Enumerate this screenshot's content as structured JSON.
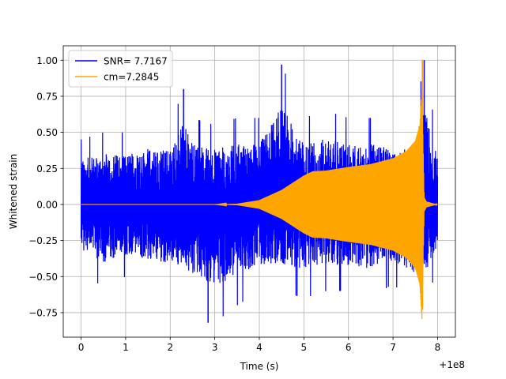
{
  "chart_data": {
    "type": "line",
    "title": "",
    "xlabel": "Time (s)",
    "ylabel": "Whitened strain",
    "x_offset_label": "+1e8",
    "xlim": [
      -0.4,
      8.4
    ],
    "ylim": [
      -0.92,
      1.1
    ],
    "x_ticks": [
      0,
      1,
      2,
      3,
      4,
      5,
      6,
      7,
      8
    ],
    "x_tick_labels": [
      "0",
      "1",
      "2",
      "3",
      "4",
      "5",
      "6",
      "7",
      "8"
    ],
    "y_ticks": [
      -0.75,
      -0.5,
      -0.25,
      0.0,
      0.25,
      0.5,
      0.75,
      1.0
    ],
    "y_tick_labels": [
      "−0.75",
      "−0.50",
      "−0.25",
      "0.00",
      "0.25",
      "0.50",
      "0.75",
      "1.00"
    ],
    "grid": true,
    "legend_position": "top-left",
    "series": [
      {
        "name": "SNR= 7.7167",
        "color": "#0000ff",
        "description_points": {
          "x": [
            0.0,
            0.5,
            1.0,
            1.5,
            2.0,
            2.3,
            2.5,
            3.0,
            3.5,
            4.0,
            4.5,
            5.0,
            5.5,
            6.0,
            6.5,
            7.0,
            7.5,
            7.7,
            8.0
          ],
          "upper": [
            0.45,
            0.5,
            0.5,
            0.55,
            0.55,
            0.8,
            0.6,
            0.55,
            0.6,
            0.6,
            0.97,
            0.6,
            0.65,
            0.6,
            0.6,
            0.55,
            0.6,
            1.0,
            0.45
          ],
          "lower": [
            -0.45,
            -0.58,
            -0.5,
            -0.55,
            -0.6,
            -0.6,
            -0.7,
            -0.82,
            -0.7,
            -0.6,
            -0.6,
            -0.65,
            -0.6,
            -0.6,
            -0.65,
            -0.55,
            -0.7,
            -0.7,
            -0.45
          ]
        }
      },
      {
        "name": "cm=7.2845",
        "color": "#ffa500",
        "envelope": {
          "x": [
            0.0,
            3.0,
            3.5,
            4.0,
            4.5,
            5.0,
            5.2,
            5.5,
            6.0,
            6.5,
            7.0,
            7.3,
            7.5,
            7.6,
            7.65,
            7.7,
            7.75,
            8.0
          ],
          "amplitude": [
            0.0,
            0.0,
            0.005,
            0.03,
            0.1,
            0.2,
            0.23,
            0.235,
            0.26,
            0.28,
            0.32,
            0.37,
            0.44,
            0.55,
            0.8,
            0.05,
            0.02,
            0.0
          ]
        },
        "peak": {
          "x": 7.66,
          "y": 1.0,
          "min_y": -0.73
        }
      }
    ]
  }
}
